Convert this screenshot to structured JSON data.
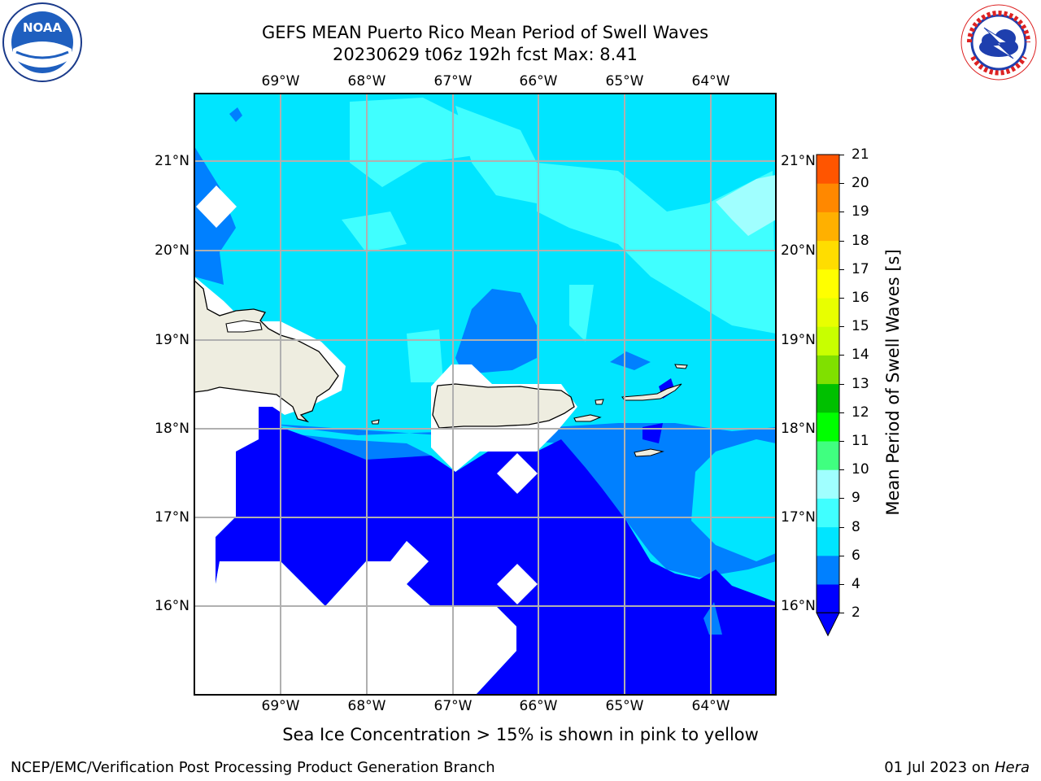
{
  "title": {
    "line1": "GEFS MEAN Puerto Rico Mean Period of Swell Waves",
    "line2": "20230629 t06z 192h fcst   Max: 8.41"
  },
  "logos": {
    "noaa": "NOAA",
    "noaa_ring": "NATIONAL OCEANIC AND ATMOSPHERIC ADMINISTRATION · U.S. DEPARTMENT OF COMMERCE",
    "nws_ring": "NATIONAL WEATHER SERVICE"
  },
  "map": {
    "lon_labels": [
      "69°W",
      "68°W",
      "67°W",
      "66°W",
      "65°W",
      "64°W"
    ],
    "lat_labels": [
      "21°N",
      "20°N",
      "19°N",
      "18°N",
      "17°N",
      "16°N"
    ],
    "gridlines": true
  },
  "colorbar": {
    "label": "Mean Period of Swell Waves [s]",
    "ticks": [
      "2",
      "4",
      "6",
      "8",
      "9",
      "10",
      "11",
      "12",
      "13",
      "14",
      "15",
      "16",
      "17",
      "18",
      "19",
      "20",
      "21"
    ],
    "colors": [
      "#0000ff",
      "#0080ff",
      "#00e5ff",
      "#40ffff",
      "#a0ffff",
      "#40ff80",
      "#00ff00",
      "#00c000",
      "#80e000",
      "#c8ff00",
      "#e8ff00",
      "#ffff00",
      "#ffdd00",
      "#ffb000",
      "#ff8800",
      "#ff5500",
      "#ff2200",
      "#ff0000"
    ],
    "extend": "min"
  },
  "caption": "Sea Ice Concentration > 15% is shown in pink to yellow",
  "footer": {
    "left": "NCEP/EMC/Verification Post Processing Product Generation Branch",
    "date": "01 Jul 2023 on ",
    "host": "Hera"
  }
}
